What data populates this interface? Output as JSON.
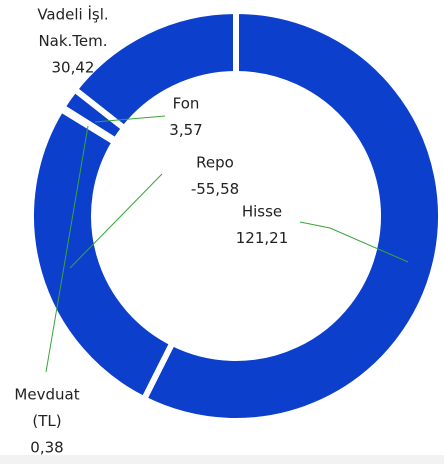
{
  "chart_data": {
    "type": "donut",
    "categories": [
      [
        "Hisse"
      ],
      [
        "Repo"
      ],
      [
        "Mevduat",
        "(TL)"
      ],
      [
        "Fon"
      ],
      [
        "Vadeli İşl.",
        "Nak.Tem."
      ]
    ],
    "values": [
      121.21,
      -55.58,
      0.38,
      3.57,
      30.42
    ],
    "value_labels": [
      "121,21",
      "-55,58",
      "0,38",
      "3,57",
      "30,42"
    ],
    "color": "#0b3fcc"
  }
}
